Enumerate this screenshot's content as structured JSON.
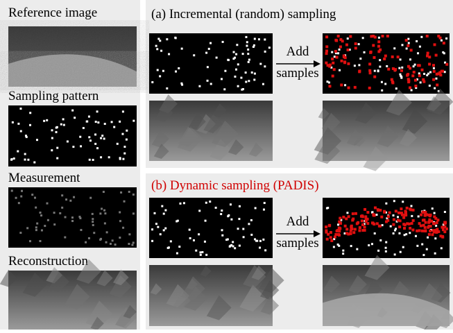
{
  "left_column": {
    "labels": [
      "Reference image",
      "Sampling pattern",
      "Measurement",
      "Reconstruction"
    ]
  },
  "panel_a": {
    "title": "(a) Incremental (random) sampling",
    "arrow_label": [
      "Add",
      "samples"
    ]
  },
  "panel_b": {
    "title": "(b) Dynamic sampling (PADIS)",
    "arrow_label": [
      "Add",
      "samples"
    ]
  }
}
